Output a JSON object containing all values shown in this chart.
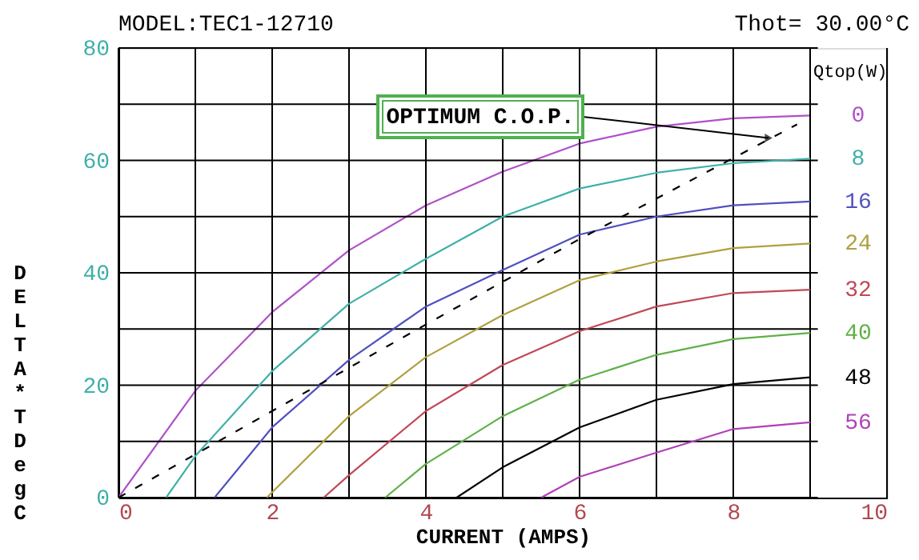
{
  "chart_data": {
    "type": "line",
    "title": "MODEL:TEC1-12710",
    "xlabel": "CURRENT (AMPS)",
    "ylabel": "DELTA*T Deg C",
    "legend_title": "Qtop(W)",
    "annotations": [
      "Thot= 30.00°C",
      {
        "text": "OPTIMUM C.O.P.",
        "x": 8.46,
        "y": 64
      }
    ],
    "xlim": [
      0,
      10
    ],
    "ylim": [
      0,
      80
    ],
    "xticks": [
      0,
      {
        "value": 1,
        "label": null
      },
      2,
      {
        "value": 3,
        "label": null
      },
      4,
      {
        "value": 5,
        "label": null
      },
      6,
      {
        "value": 7,
        "label": null
      },
      8,
      {
        "value": 9,
        "label": null
      },
      10
    ],
    "yticks": [
      0,
      {
        "value": 10,
        "label": null
      },
      20,
      {
        "value": 30,
        "label": null
      },
      40,
      {
        "value": 50,
        "label": null
      },
      60,
      {
        "value": 70,
        "label": null
      },
      80
    ],
    "grid": true,
    "legend": false,
    "marker": "none",
    "line_style": "solid",
    "series": [
      {
        "name": "0",
        "color": "#b050c8",
        "x": [
          0,
          1,
          2,
          3,
          4,
          5,
          6,
          7,
          8,
          9
        ],
        "values": [
          0,
          19,
          33,
          44,
          52,
          58,
          63,
          66,
          67.5,
          68
        ]
      },
      {
        "name": "8",
        "color": "#40b0a8",
        "x": [
          0.62,
          1,
          2,
          3,
          4,
          5,
          6,
          7,
          8,
          9
        ],
        "values": [
          0,
          7.4,
          22.5,
          34.5,
          42.5,
          50,
          55,
          57.8,
          59.5,
          60.3
        ]
      },
      {
        "name": "16",
        "color": "#5050c0",
        "x": [
          1.25,
          2,
          3,
          4,
          5,
          6,
          7,
          8,
          9
        ],
        "values": [
          0,
          12.5,
          24.5,
          34,
          40.5,
          46.8,
          50,
          52,
          52.7
        ]
      },
      {
        "name": "24",
        "color": "#b0a040",
        "x": [
          1.93,
          3,
          4,
          5,
          6,
          7,
          8,
          9
        ],
        "values": [
          0,
          14.5,
          25,
          32.5,
          38.7,
          42,
          44.4,
          45.2
        ]
      },
      {
        "name": "32",
        "color": "#c04858",
        "x": [
          2.67,
          3,
          4,
          5,
          6,
          7,
          8,
          9
        ],
        "values": [
          0,
          4,
          15.4,
          23.6,
          29.6,
          34,
          36.4,
          37
        ]
      },
      {
        "name": "40",
        "color": "#60b048",
        "x": [
          3.47,
          4,
          5,
          6,
          7,
          8,
          9
        ],
        "values": [
          0,
          6,
          14.5,
          21,
          25.4,
          28.2,
          29.3
        ]
      },
      {
        "name": "48",
        "color": "#000000",
        "x": [
          4.4,
          5,
          6,
          7,
          8,
          9
        ],
        "values": [
          0,
          5.4,
          12.5,
          17.4,
          20.2,
          21.4
        ]
      },
      {
        "name": "56",
        "color": "#b040b8",
        "x": [
          5.5,
          6,
          7,
          8,
          9
        ],
        "values": [
          0,
          3.7,
          8,
          12.2,
          13.4
        ]
      },
      {
        "color": "#000000",
        "line_style": "dashed",
        "x": [
          0,
          2,
          4,
          6,
          8.83
        ],
        "values": [
          0,
          15.4,
          30.8,
          46,
          66.4
        ]
      }
    ]
  }
}
